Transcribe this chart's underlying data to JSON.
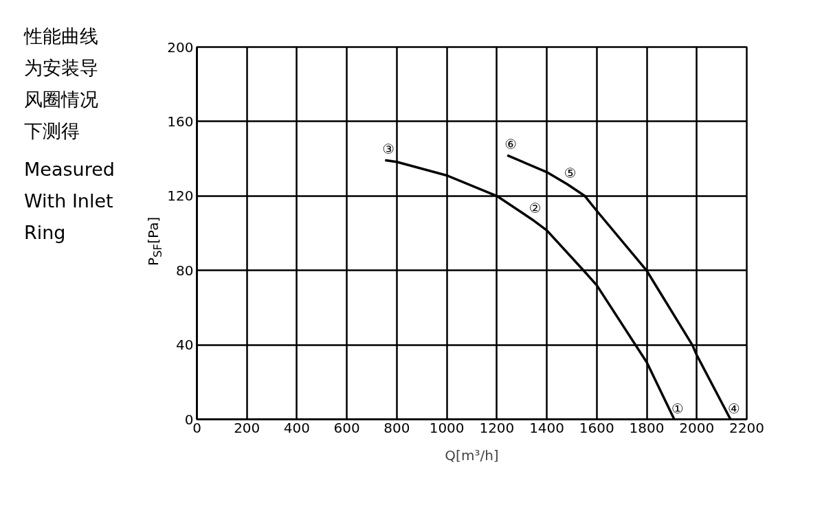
{
  "chart_data": {
    "type": "line",
    "title": "性能曲线为安装导风圈情况下测得",
    "subtitle": "Measured With Inlet Ring",
    "xlabel": "Q[m³/h]",
    "ylabel": "P$_{SF}$[Pa]",
    "xlim": [
      0,
      2200
    ],
    "xticks": [
      0,
      200,
      400,
      600,
      800,
      1000,
      1200,
      1400,
      1600,
      1800,
      2000,
      2200
    ],
    "ylim": [
      0,
      200
    ],
    "yticks": [
      0,
      40,
      80,
      120,
      160,
      200
    ],
    "grid": true,
    "marker": "none",
    "line_style": "solid",
    "series": [
      {
        "color": "#000000",
        "x": [
          753,
          800,
          1000,
          1200,
          1340,
          1400,
          1547,
          1600,
          1800,
          1910
        ],
        "values": [
          139.2,
          138.3,
          131,
          120,
          107.5,
          101.5,
          80,
          72,
          30.6,
          0
        ]
      },
      {
        "color": "#000000",
        "x": [
          1242,
          1400,
          1480,
          1552,
          1600,
          1800,
          1982,
          2000,
          2135
        ],
        "values": [
          141.8,
          132.8,
          126.5,
          120,
          112,
          79.8,
          40,
          34.5,
          0
        ]
      }
    ],
    "annotations": [
      {
        "text": "①",
        "x": 1910,
        "y": 0
      },
      {
        "text": "②",
        "x": 1340,
        "y": 107.5
      },
      {
        "text": "③",
        "x": 753,
        "y": 139.2
      },
      {
        "text": "④",
        "x": 2135,
        "y": 0
      },
      {
        "text": "⑤",
        "x": 1480,
        "y": 126.5
      },
      {
        "text": "⑥",
        "x": 1242,
        "y": 141.8
      }
    ]
  }
}
